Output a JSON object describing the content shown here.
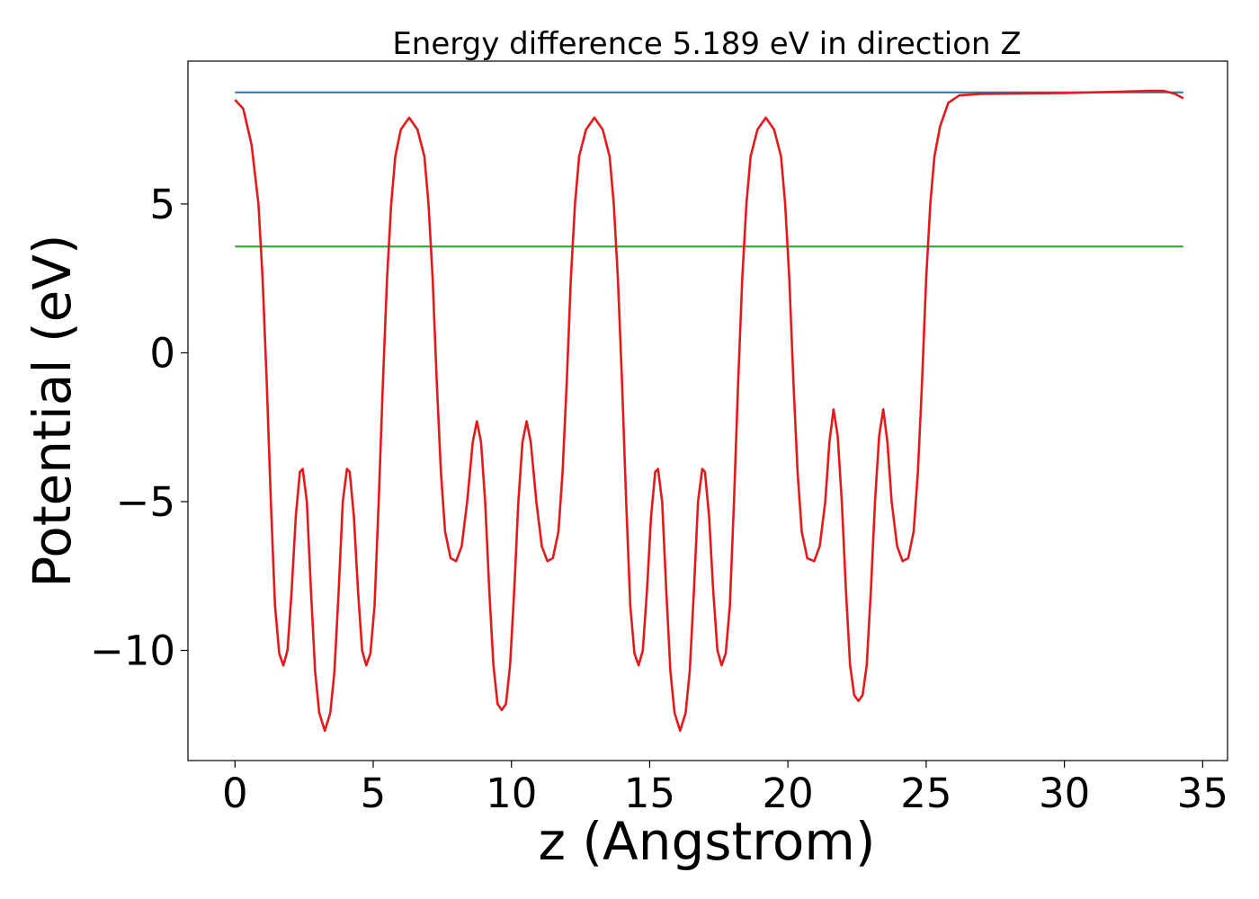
{
  "chart_data": {
    "type": "line",
    "title": "Energy difference 5.189 eV in direction Z",
    "xlabel": "z (Angstrom)",
    "ylabel": "Potential (eV)",
    "xlim": [
      -1.7,
      35.9
    ],
    "ylim": [
      -13.7,
      9.8
    ],
    "xticks": [
      0,
      5,
      10,
      15,
      20,
      25,
      30,
      35
    ],
    "xtick_labels": [
      "0",
      "5",
      "10",
      "15",
      "20",
      "25",
      "30",
      "35"
    ],
    "yticks": [
      -10,
      -5,
      0,
      5
    ],
    "ytick_labels": [
      "−10",
      "−5",
      "0",
      "5"
    ],
    "grid": false,
    "series": [
      {
        "color": "#1f77b4",
        "points": [
          [
            0,
            8.75
          ],
          [
            34.3,
            8.75
          ]
        ]
      },
      {
        "color": "#2ca02c",
        "points": [
          [
            0,
            3.57
          ],
          [
            34.3,
            3.57
          ]
        ]
      },
      {
        "color": "#e31a1c",
        "points": [
          [
            0,
            8.5
          ],
          [
            0.3,
            8.2
          ],
          [
            0.6,
            7.0
          ],
          [
            0.85,
            5.0
          ],
          [
            1.0,
            2.5
          ],
          [
            1.15,
            -1.0
          ],
          [
            1.3,
            -5.0
          ],
          [
            1.45,
            -8.5
          ],
          [
            1.6,
            -10.1
          ],
          [
            1.75,
            -10.5
          ],
          [
            1.9,
            -10.0
          ],
          [
            2.05,
            -8.0
          ],
          [
            2.2,
            -5.5
          ],
          [
            2.35,
            -4.0
          ],
          [
            2.45,
            -3.9
          ],
          [
            2.6,
            -5.0
          ],
          [
            2.75,
            -8.0
          ],
          [
            2.9,
            -10.7
          ],
          [
            3.05,
            -12.1
          ],
          [
            3.25,
            -12.7
          ],
          [
            3.45,
            -12.1
          ],
          [
            3.6,
            -10.7
          ],
          [
            3.75,
            -8.0
          ],
          [
            3.9,
            -5.0
          ],
          [
            4.05,
            -3.9
          ],
          [
            4.15,
            -4.0
          ],
          [
            4.3,
            -5.5
          ],
          [
            4.45,
            -8.0
          ],
          [
            4.6,
            -10.0
          ],
          [
            4.75,
            -10.5
          ],
          [
            4.9,
            -10.1
          ],
          [
            5.05,
            -8.5
          ],
          [
            5.2,
            -5.0
          ],
          [
            5.35,
            -1.0
          ],
          [
            5.5,
            2.5
          ],
          [
            5.65,
            5.0
          ],
          [
            5.8,
            6.6
          ],
          [
            6.0,
            7.5
          ],
          [
            6.3,
            7.9
          ],
          [
            6.6,
            7.5
          ],
          [
            6.85,
            6.6
          ],
          [
            7.0,
            5.0
          ],
          [
            7.15,
            2.5
          ],
          [
            7.3,
            -1.0
          ],
          [
            7.45,
            -4.0
          ],
          [
            7.6,
            -6.0
          ],
          [
            7.8,
            -6.9
          ],
          [
            8.0,
            -7.0
          ],
          [
            8.2,
            -6.5
          ],
          [
            8.4,
            -5.0
          ],
          [
            8.6,
            -3.0
          ],
          [
            8.75,
            -2.3
          ],
          [
            8.9,
            -3.0
          ],
          [
            9.05,
            -5.0
          ],
          [
            9.2,
            -8.0
          ],
          [
            9.35,
            -10.5
          ],
          [
            9.5,
            -11.8
          ],
          [
            9.65,
            -12.0
          ],
          [
            9.8,
            -11.8
          ],
          [
            9.95,
            -10.5
          ],
          [
            10.1,
            -8.0
          ],
          [
            10.25,
            -5.0
          ],
          [
            10.4,
            -3.0
          ],
          [
            10.55,
            -2.3
          ],
          [
            10.7,
            -3.0
          ],
          [
            10.9,
            -5.0
          ],
          [
            11.1,
            -6.5
          ],
          [
            11.3,
            -7.0
          ],
          [
            11.5,
            -6.9
          ],
          [
            11.7,
            -6.0
          ],
          [
            11.85,
            -4.0
          ],
          [
            12.0,
            -1.0
          ],
          [
            12.15,
            2.5
          ],
          [
            12.3,
            5.0
          ],
          [
            12.45,
            6.6
          ],
          [
            12.7,
            7.5
          ],
          [
            13.0,
            7.9
          ],
          [
            13.3,
            7.5
          ],
          [
            13.55,
            6.6
          ],
          [
            13.7,
            5.0
          ],
          [
            13.85,
            2.5
          ],
          [
            14.0,
            -1.0
          ],
          [
            14.15,
            -5.0
          ],
          [
            14.3,
            -8.5
          ],
          [
            14.45,
            -10.1
          ],
          [
            14.6,
            -10.5
          ],
          [
            14.75,
            -10.0
          ],
          [
            14.9,
            -8.0
          ],
          [
            15.05,
            -5.5
          ],
          [
            15.2,
            -4.0
          ],
          [
            15.3,
            -3.9
          ],
          [
            15.45,
            -5.0
          ],
          [
            15.6,
            -8.0
          ],
          [
            15.75,
            -10.7
          ],
          [
            15.9,
            -12.1
          ],
          [
            16.1,
            -12.7
          ],
          [
            16.3,
            -12.1
          ],
          [
            16.45,
            -10.7
          ],
          [
            16.6,
            -8.0
          ],
          [
            16.75,
            -5.0
          ],
          [
            16.9,
            -3.9
          ],
          [
            17.0,
            -4.0
          ],
          [
            17.15,
            -5.5
          ],
          [
            17.3,
            -8.0
          ],
          [
            17.45,
            -10.0
          ],
          [
            17.6,
            -10.5
          ],
          [
            17.75,
            -10.1
          ],
          [
            17.9,
            -8.5
          ],
          [
            18.05,
            -5.0
          ],
          [
            18.2,
            -1.0
          ],
          [
            18.35,
            2.5
          ],
          [
            18.5,
            5.0
          ],
          [
            18.65,
            6.6
          ],
          [
            18.9,
            7.5
          ],
          [
            19.2,
            7.9
          ],
          [
            19.5,
            7.5
          ],
          [
            19.75,
            6.6
          ],
          [
            19.9,
            5.0
          ],
          [
            20.05,
            2.5
          ],
          [
            20.2,
            -1.0
          ],
          [
            20.35,
            -4.0
          ],
          [
            20.5,
            -6.0
          ],
          [
            20.7,
            -6.9
          ],
          [
            20.95,
            -7.0
          ],
          [
            21.15,
            -6.5
          ],
          [
            21.35,
            -5.0
          ],
          [
            21.5,
            -3.0
          ],
          [
            21.65,
            -1.9
          ],
          [
            21.8,
            -2.8
          ],
          [
            21.95,
            -5.0
          ],
          [
            22.1,
            -8.0
          ],
          [
            22.25,
            -10.5
          ],
          [
            22.4,
            -11.5
          ],
          [
            22.55,
            -11.7
          ],
          [
            22.7,
            -11.5
          ],
          [
            22.85,
            -10.5
          ],
          [
            23.0,
            -8.0
          ],
          [
            23.15,
            -5.0
          ],
          [
            23.3,
            -2.8
          ],
          [
            23.45,
            -1.9
          ],
          [
            23.6,
            -3.0
          ],
          [
            23.75,
            -5.0
          ],
          [
            23.95,
            -6.5
          ],
          [
            24.15,
            -7.0
          ],
          [
            24.35,
            -6.9
          ],
          [
            24.55,
            -6.0
          ],
          [
            24.7,
            -4.0
          ],
          [
            24.85,
            -1.0
          ],
          [
            25.0,
            2.5
          ],
          [
            25.15,
            5.0
          ],
          [
            25.3,
            6.6
          ],
          [
            25.5,
            7.6
          ],
          [
            25.8,
            8.4
          ],
          [
            26.2,
            8.65
          ],
          [
            27.0,
            8.7
          ],
          [
            30.0,
            8.73
          ],
          [
            32.0,
            8.77
          ],
          [
            33.0,
            8.8
          ],
          [
            33.6,
            8.8
          ],
          [
            34.0,
            8.7
          ],
          [
            34.3,
            8.55
          ]
        ]
      }
    ]
  }
}
